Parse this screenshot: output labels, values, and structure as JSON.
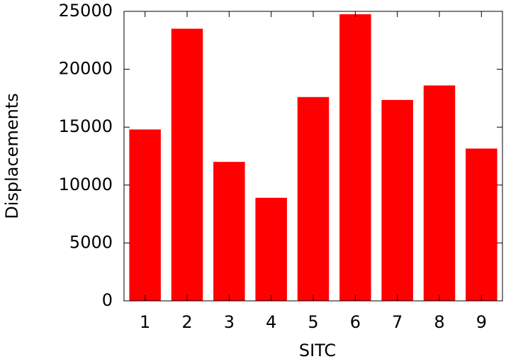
{
  "chart_data": {
    "type": "bar",
    "xlabel": "SITC",
    "ylabel": "Displacements",
    "categories": [
      "1",
      "2",
      "3",
      "4",
      "5",
      "6",
      "7",
      "8",
      "9"
    ],
    "values": [
      14800,
      23500,
      12000,
      8900,
      17600,
      24750,
      17350,
      18600,
      13150
    ],
    "color": "#ff0000",
    "ylim": [
      0,
      25000
    ],
    "yticks": [
      0,
      5000,
      10000,
      15000,
      20000,
      25000
    ],
    "grid": false
  }
}
